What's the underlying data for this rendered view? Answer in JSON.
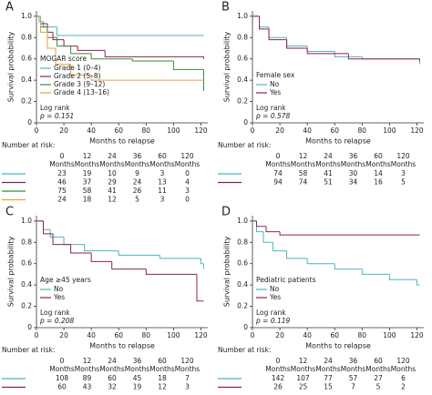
{
  "chart_data": [
    {
      "type": "step",
      "panel": "A",
      "x_label": "Months to relapse",
      "y_label": "Survival probability",
      "xlim": [
        0,
        125
      ],
      "xticks": [
        0,
        20,
        40,
        60,
        80,
        100,
        120
      ],
      "ylim": [
        0,
        1.05
      ],
      "yticks": [
        0,
        0.2,
        0.4,
        0.6,
        0.8,
        {
          "value": 1,
          "label": "1.0"
        }
      ],
      "legend_title": "MOGAR score",
      "test": "Log rank",
      "p_label": "p = 0.151",
      "series": [
        {
          "name": "Grade 1 (0–4)",
          "color": "#4fb3bf",
          "x": [
            0,
            2,
            5,
            15,
            122
          ],
          "values": [
            1,
            0.95,
            0.9,
            0.82,
            0.82
          ]
        },
        {
          "name": "Grade 2 (5–8)",
          "color": "#8b2252",
          "x": [
            0,
            3,
            8,
            12,
            20,
            30,
            50,
            122
          ],
          "values": [
            1,
            0.93,
            0.85,
            0.78,
            0.72,
            0.68,
            0.62,
            0.6
          ]
        },
        {
          "name": "Grade 3 (9–12)",
          "color": "#3a8a3a",
          "x": [
            0,
            3,
            8,
            15,
            25,
            40,
            70,
            100,
            122
          ],
          "values": [
            1,
            0.9,
            0.8,
            0.72,
            0.65,
            0.6,
            0.58,
            0.5,
            0.3
          ]
        },
        {
          "name": "Grade 4 (13–16)",
          "color": "#e8a040",
          "x": [
            0,
            3,
            8,
            14,
            25,
            40,
            122
          ],
          "values": [
            1,
            0.85,
            0.7,
            0.55,
            0.45,
            0.4,
            0.4
          ]
        }
      ],
      "risk_table": {
        "title": "Number at risk:",
        "times": [
          0,
          12,
          24,
          36,
          60,
          120
        ],
        "unit": "Months",
        "rows": [
          [
            23,
            19,
            10,
            9,
            3,
            0
          ],
          [
            46,
            37,
            29,
            24,
            13,
            4
          ],
          [
            75,
            58,
            41,
            26,
            11,
            3
          ],
          [
            24,
            18,
            12,
            5,
            3,
            0
          ]
        ]
      }
    },
    {
      "type": "step",
      "panel": "B",
      "x_label": "Months to relapse",
      "y_label": "Survival probability",
      "xlim": [
        0,
        125
      ],
      "xticks": [
        0,
        20,
        40,
        60,
        80,
        100,
        120
      ],
      "ylim": [
        0,
        1.05
      ],
      "yticks": [
        0,
        0.2,
        0.4,
        0.6,
        0.8,
        {
          "value": 1,
          "label": "1.0"
        }
      ],
      "legend_title": "Female sex",
      "test": "Log rank",
      "p_label": "p = 0.578",
      "series": [
        {
          "name": "No",
          "color": "#4fb3bf",
          "x": [
            0,
            5,
            12,
            25,
            40,
            60,
            80,
            122
          ],
          "values": [
            1,
            0.9,
            0.8,
            0.72,
            0.67,
            0.62,
            0.6,
            0.55
          ]
        },
        {
          "name": "Yes",
          "color": "#8b2252",
          "x": [
            0,
            5,
            12,
            25,
            40,
            70,
            122
          ],
          "values": [
            1,
            0.88,
            0.78,
            0.7,
            0.65,
            0.6,
            0.58
          ]
        }
      ],
      "risk_table": {
        "title": "Number at risk:",
        "times": [
          0,
          12,
          24,
          36,
          60,
          120
        ],
        "unit": "Months",
        "rows": [
          [
            74,
            58,
            41,
            30,
            14,
            3
          ],
          [
            94,
            74,
            51,
            34,
            16,
            5
          ]
        ]
      }
    },
    {
      "type": "step",
      "panel": "C",
      "x_label": "Months to relapse",
      "y_label": "Survival probability",
      "xlim": [
        0,
        125
      ],
      "xticks": [
        0,
        20,
        40,
        60,
        80,
        100,
        120
      ],
      "ylim": [
        0,
        1.05
      ],
      "yticks": [
        0,
        0.2,
        0.4,
        0.6,
        0.8,
        {
          "value": 1,
          "label": "1.0"
        }
      ],
      "legend_title": "Age ≥45 years",
      "test": "Log rank",
      "p_label": "p = 0.208",
      "series": [
        {
          "name": "No",
          "color": "#4fb3bf",
          "x": [
            0,
            5,
            10,
            20,
            35,
            60,
            90,
            120,
            122
          ],
          "values": [
            1,
            0.92,
            0.85,
            0.78,
            0.72,
            0.68,
            0.65,
            0.6,
            0.55
          ]
        },
        {
          "name": "Yes",
          "color": "#8b2252",
          "x": [
            0,
            5,
            12,
            25,
            40,
            55,
            80,
            117,
            122
          ],
          "values": [
            1,
            0.88,
            0.78,
            0.7,
            0.62,
            0.55,
            0.5,
            0.25,
            0.25
          ]
        }
      ],
      "risk_table": {
        "title": "Number at risk:",
        "times": [
          0,
          12,
          24,
          36,
          60,
          120
        ],
        "unit": "Months",
        "rows": [
          [
            108,
            89,
            60,
            45,
            18,
            7
          ],
          [
            60,
            43,
            32,
            19,
            12,
            3
          ]
        ]
      }
    },
    {
      "type": "step",
      "panel": "D",
      "x_label": "Months to relapse",
      "y_label": "Survival probability",
      "xlim": [
        0,
        125
      ],
      "xticks": [
        0,
        20,
        40,
        60,
        80,
        100,
        120
      ],
      "ylim": [
        0,
        1.05
      ],
      "yticks": [
        0,
        0.2,
        0.4,
        0.6,
        0.8,
        {
          "value": 1,
          "label": "1.0"
        }
      ],
      "legend_title": "Pediatric patients",
      "test": "Log rank",
      "p_label": "p = 0.119",
      "series": [
        {
          "name": "No",
          "color": "#4fb3bf",
          "x": [
            0,
            3,
            8,
            15,
            25,
            40,
            60,
            80,
            100,
            120,
            122
          ],
          "values": [
            1,
            0.9,
            0.8,
            0.72,
            0.65,
            0.6,
            0.55,
            0.5,
            0.45,
            0.4,
            0.4
          ]
        },
        {
          "name": "Yes",
          "color": "#8b2252",
          "x": [
            0,
            3,
            10,
            20,
            122
          ],
          "values": [
            1,
            0.95,
            0.9,
            0.87,
            0.87
          ]
        }
      ],
      "risk_table": {
        "title": "Number at risk:",
        "times": [
          0,
          12,
          24,
          36,
          60,
          120
        ],
        "unit": "Months",
        "rows": [
          [
            142,
            107,
            77,
            57,
            27,
            6
          ],
          [
            26,
            25,
            15,
            7,
            5,
            2
          ]
        ]
      }
    }
  ]
}
